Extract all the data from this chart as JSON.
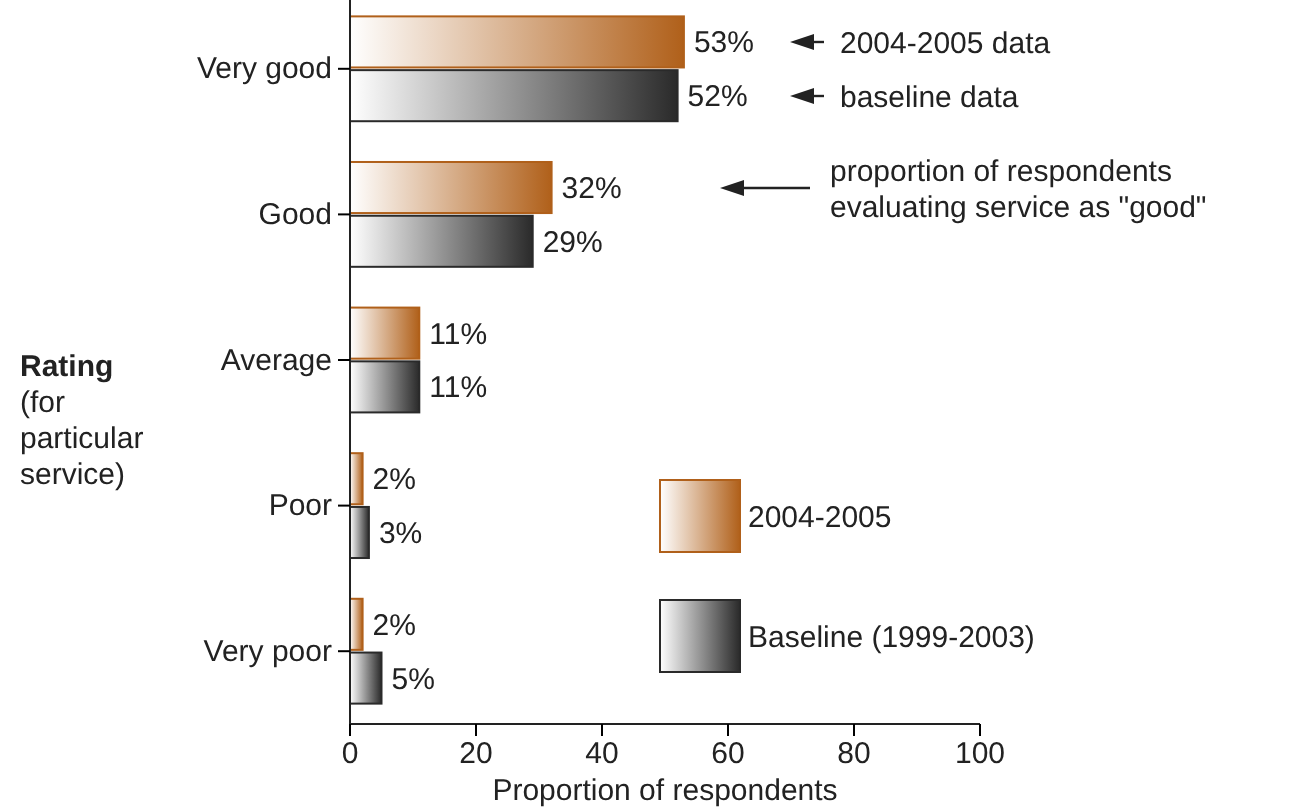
{
  "chart_data": {
    "type": "bar",
    "orientation": "horizontal",
    "categories": [
      "Very good",
      "Good",
      "Average",
      "Poor",
      "Very poor"
    ],
    "series": [
      {
        "name": "2004-2005",
        "color": "#b0601a",
        "values": [
          53,
          32,
          11,
          2,
          2
        ],
        "value_labels": [
          "53%",
          "32%",
          "11%",
          "2%",
          "2%"
        ]
      },
      {
        "name": "Baseline (1999-2003)",
        "color": "#2a2a2a",
        "values": [
          52,
          29,
          11,
          3,
          5
        ],
        "value_labels": [
          "52%",
          "29%",
          "11%",
          "3%",
          "5%"
        ]
      }
    ],
    "xlim": [
      0,
      100
    ],
    "xticks": [
      0,
      20,
      40,
      60,
      80,
      100
    ],
    "xlabel": "Proportion of respondents",
    "ylabel": "Rating (for particular service)",
    "legend": "bottom right",
    "grid": false,
    "annotations": [
      "2004-2005 data",
      "baseline data",
      "proportion of respondents evaluating service as \"good\""
    ]
  }
}
